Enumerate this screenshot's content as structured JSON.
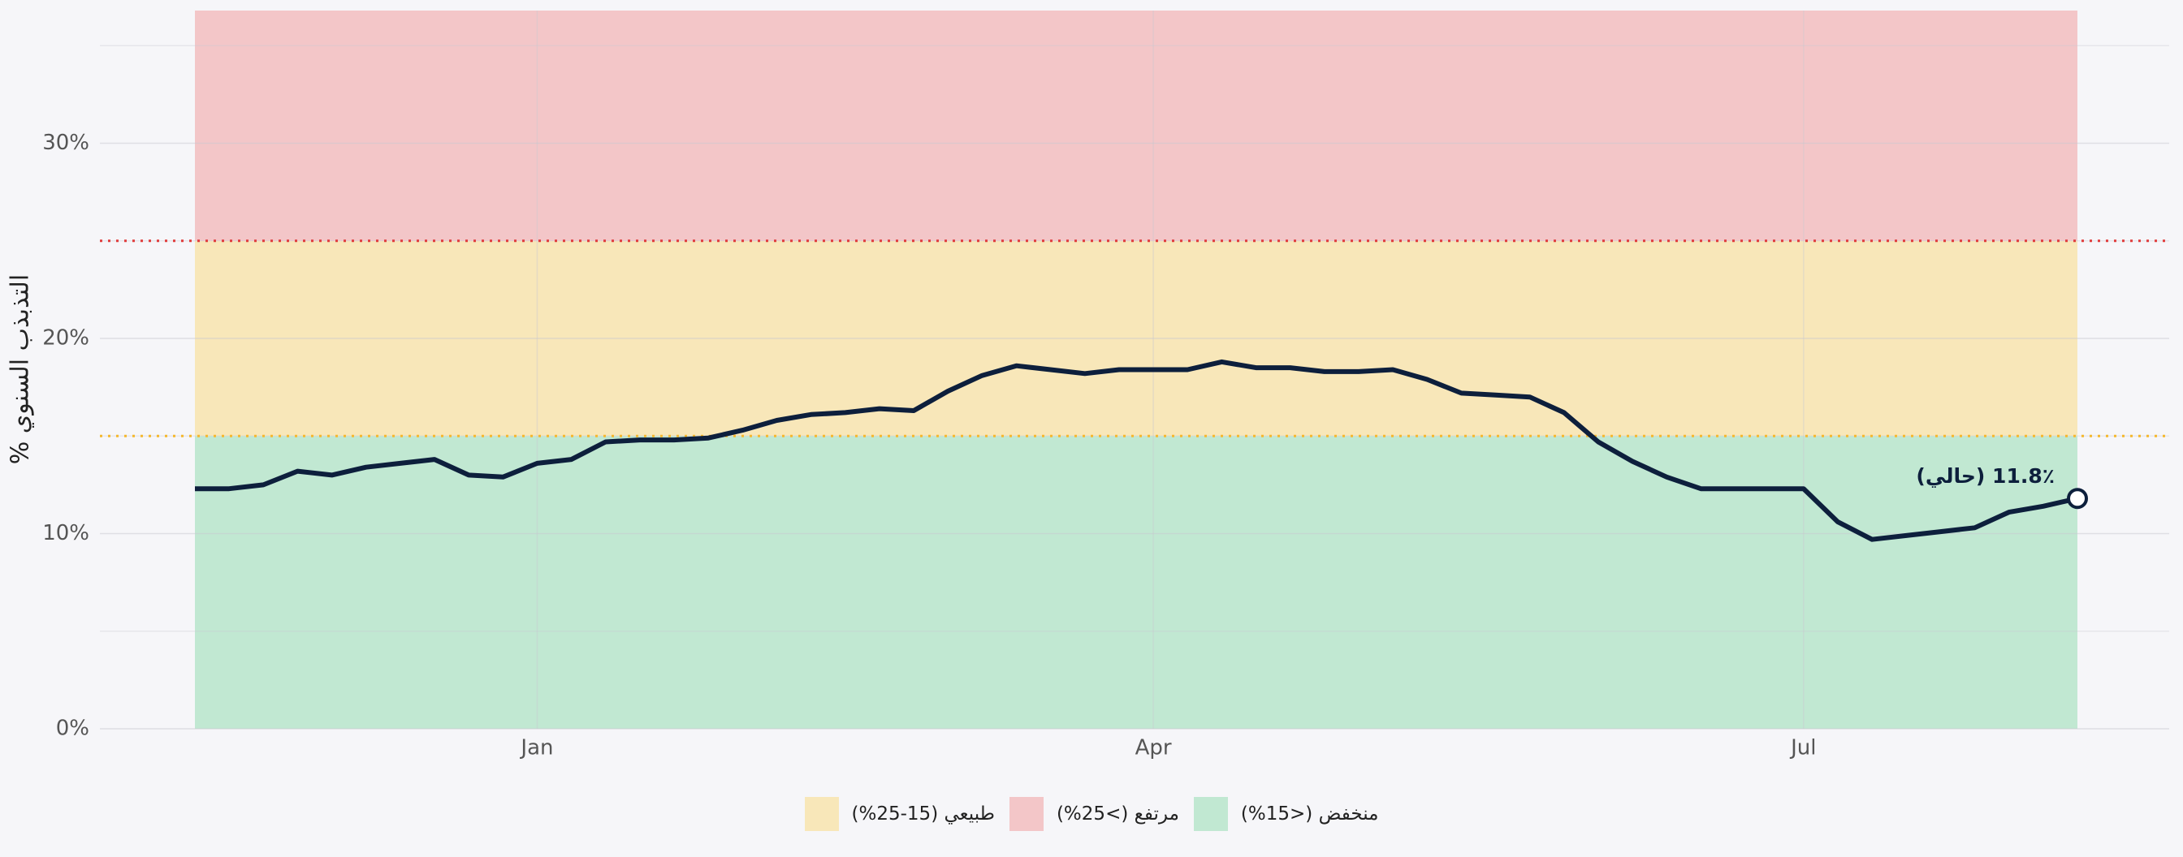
{
  "chart_data": {
    "type": "line",
    "y_label": "التذبذب السنوي %",
    "annotation": "11.8٪ (حالي)",
    "categories": [
      null,
      null,
      null,
      null,
      null,
      null,
      null,
      null,
      null,
      null,
      "Jan",
      null,
      null,
      null,
      null,
      null,
      null,
      null,
      null,
      null,
      null,
      null,
      null,
      null,
      null,
      null,
      null,
      null,
      "Apr",
      null,
      null,
      null,
      null,
      null,
      null,
      null,
      null,
      null,
      null,
      null,
      null,
      null,
      null,
      null,
      null,
      null,
      null,
      "Jul",
      null,
      null,
      null,
      null,
      null,
      null,
      null,
      null
    ],
    "values": [
      12.3,
      12.3,
      12.5,
      13.2,
      13.0,
      13.4,
      13.6,
      13.8,
      13.0,
      12.9,
      13.6,
      13.8,
      14.7,
      14.8,
      14.8,
      14.9,
      15.3,
      15.8,
      16.1,
      16.2,
      16.4,
      16.3,
      17.3,
      18.1,
      18.6,
      18.4,
      18.2,
      18.4,
      18.4,
      18.4,
      18.8,
      18.5,
      18.5,
      18.3,
      18.3,
      18.4,
      17.9,
      17.2,
      17.1,
      17.0,
      16.2,
      14.7,
      13.7,
      12.9,
      12.3,
      12.3,
      12.3,
      12.3,
      10.6,
      9.7,
      9.9,
      10.1,
      10.3,
      11.1,
      11.4,
      11.8
    ],
    "color": "#0d1f3c",
    "ylim": [
      0,
      36.8
    ],
    "yticks": [
      {
        "value": 0,
        "label": "0%"
      },
      {
        "value": 10,
        "label": "10%"
      },
      {
        "value": 20,
        "label": "20%"
      },
      {
        "value": 30,
        "label": "30%"
      }
    ],
    "yminor_ticks": [
      5,
      15,
      25,
      35
    ],
    "grid": true,
    "bands": [
      {
        "name": "طبيعي (15-25%)",
        "color": "#f8e7b9",
        "range": [
          15,
          25
        ]
      },
      {
        "name": "مرتفع (>25%)",
        "color": "#f3c6c8",
        "range": [
          25,
          36.8
        ]
      },
      {
        "name": "منخفض (<15%)",
        "color": "#c1e8d2",
        "range": [
          0,
          15
        ]
      }
    ],
    "thresholds": [
      {
        "value": 15,
        "color": "#f5b82e"
      },
      {
        "value": 25,
        "color": "#e03c3c"
      }
    ]
  }
}
